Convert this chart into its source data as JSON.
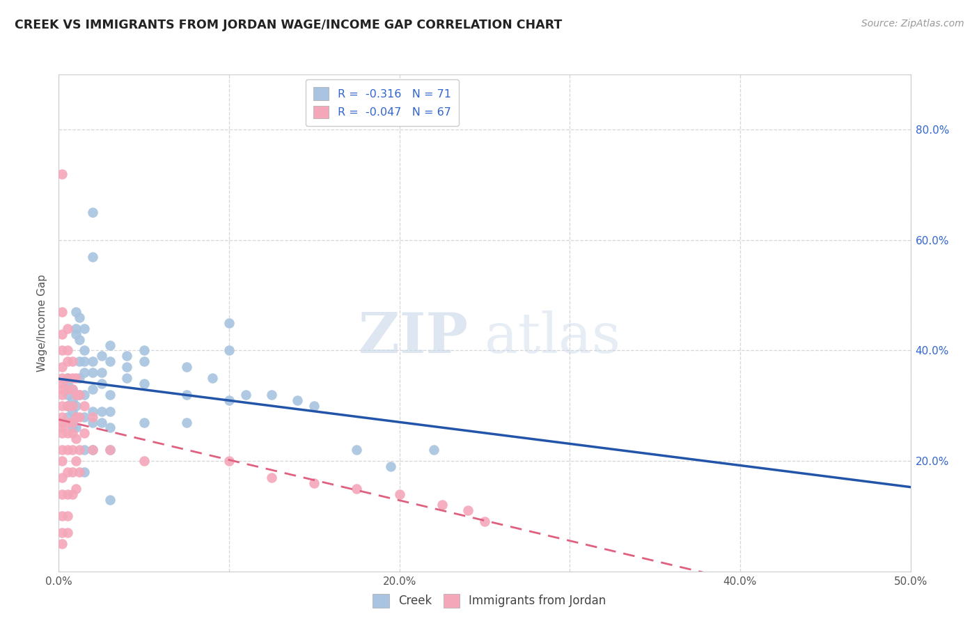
{
  "title": "CREEK VS IMMIGRANTS FROM JORDAN WAGE/INCOME GAP CORRELATION CHART",
  "source": "Source: ZipAtlas.com",
  "ylabel": "Wage/Income Gap",
  "xlim": [
    0.0,
    0.5
  ],
  "ylim": [
    -0.02,
    0.92
  ],
  "plot_ylim": [
    0.0,
    0.9
  ],
  "xtick_vals": [
    0.0,
    0.1,
    0.2,
    0.3,
    0.4,
    0.5
  ],
  "xtick_labels": [
    "0.0%",
    "",
    "20.0%",
    "",
    "40.0%",
    "50.0%"
  ],
  "ytick_vals": [
    0.2,
    0.4,
    0.6,
    0.8
  ],
  "ytick_labels": [
    "20.0%",
    "40.0%",
    "60.0%",
    "80.0%"
  ],
  "creek_color": "#a8c4e0",
  "jordan_color": "#f4a7b9",
  "creek_R": -0.316,
  "creek_N": 71,
  "jordan_R": -0.047,
  "jordan_N": 67,
  "legend_R_color": "#3366cc",
  "creek_line_color": "#2255aa",
  "jordan_line_color": "#e06080",
  "watermark_zip": "ZIP",
  "watermark_atlas": "atlas",
  "creek_points": [
    [
      0.005,
      0.34
    ],
    [
      0.005,
      0.32
    ],
    [
      0.005,
      0.3
    ],
    [
      0.005,
      0.28
    ],
    [
      0.005,
      0.35
    ],
    [
      0.008,
      0.33
    ],
    [
      0.008,
      0.29
    ],
    [
      0.008,
      0.27
    ],
    [
      0.008,
      0.31
    ],
    [
      0.008,
      0.26
    ],
    [
      0.01,
      0.47
    ],
    [
      0.01,
      0.44
    ],
    [
      0.01,
      0.43
    ],
    [
      0.01,
      0.32
    ],
    [
      0.01,
      0.3
    ],
    [
      0.01,
      0.28
    ],
    [
      0.01,
      0.26
    ],
    [
      0.012,
      0.46
    ],
    [
      0.012,
      0.42
    ],
    [
      0.012,
      0.38
    ],
    [
      0.012,
      0.35
    ],
    [
      0.012,
      0.32
    ],
    [
      0.015,
      0.44
    ],
    [
      0.015,
      0.4
    ],
    [
      0.015,
      0.38
    ],
    [
      0.015,
      0.36
    ],
    [
      0.015,
      0.32
    ],
    [
      0.015,
      0.28
    ],
    [
      0.015,
      0.22
    ],
    [
      0.015,
      0.18
    ],
    [
      0.02,
      0.65
    ],
    [
      0.02,
      0.57
    ],
    [
      0.02,
      0.38
    ],
    [
      0.02,
      0.36
    ],
    [
      0.02,
      0.33
    ],
    [
      0.02,
      0.29
    ],
    [
      0.02,
      0.27
    ],
    [
      0.02,
      0.22
    ],
    [
      0.025,
      0.39
    ],
    [
      0.025,
      0.36
    ],
    [
      0.025,
      0.34
    ],
    [
      0.025,
      0.29
    ],
    [
      0.025,
      0.27
    ],
    [
      0.03,
      0.41
    ],
    [
      0.03,
      0.38
    ],
    [
      0.03,
      0.32
    ],
    [
      0.03,
      0.29
    ],
    [
      0.03,
      0.26
    ],
    [
      0.03,
      0.22
    ],
    [
      0.03,
      0.13
    ],
    [
      0.04,
      0.39
    ],
    [
      0.04,
      0.37
    ],
    [
      0.04,
      0.35
    ],
    [
      0.05,
      0.4
    ],
    [
      0.05,
      0.38
    ],
    [
      0.05,
      0.34
    ],
    [
      0.05,
      0.27
    ],
    [
      0.075,
      0.37
    ],
    [
      0.075,
      0.32
    ],
    [
      0.075,
      0.27
    ],
    [
      0.09,
      0.35
    ],
    [
      0.1,
      0.45
    ],
    [
      0.1,
      0.4
    ],
    [
      0.1,
      0.31
    ],
    [
      0.11,
      0.32
    ],
    [
      0.125,
      0.32
    ],
    [
      0.14,
      0.31
    ],
    [
      0.15,
      0.3
    ],
    [
      0.175,
      0.22
    ],
    [
      0.195,
      0.19
    ],
    [
      0.22,
      0.22
    ]
  ],
  "jordan_points": [
    [
      0.002,
      0.72
    ],
    [
      0.002,
      0.47
    ],
    [
      0.002,
      0.43
    ],
    [
      0.002,
      0.4
    ],
    [
      0.002,
      0.37
    ],
    [
      0.002,
      0.35
    ],
    [
      0.002,
      0.34
    ],
    [
      0.002,
      0.33
    ],
    [
      0.002,
      0.32
    ],
    [
      0.002,
      0.3
    ],
    [
      0.002,
      0.28
    ],
    [
      0.002,
      0.27
    ],
    [
      0.002,
      0.26
    ],
    [
      0.002,
      0.25
    ],
    [
      0.002,
      0.22
    ],
    [
      0.002,
      0.2
    ],
    [
      0.002,
      0.17
    ],
    [
      0.002,
      0.14
    ],
    [
      0.002,
      0.1
    ],
    [
      0.002,
      0.07
    ],
    [
      0.002,
      0.05
    ],
    [
      0.005,
      0.44
    ],
    [
      0.005,
      0.4
    ],
    [
      0.005,
      0.38
    ],
    [
      0.005,
      0.35
    ],
    [
      0.005,
      0.33
    ],
    [
      0.005,
      0.3
    ],
    [
      0.005,
      0.27
    ],
    [
      0.005,
      0.25
    ],
    [
      0.005,
      0.22
    ],
    [
      0.005,
      0.18
    ],
    [
      0.005,
      0.14
    ],
    [
      0.005,
      0.1
    ],
    [
      0.005,
      0.07
    ],
    [
      0.008,
      0.38
    ],
    [
      0.008,
      0.35
    ],
    [
      0.008,
      0.33
    ],
    [
      0.008,
      0.3
    ],
    [
      0.008,
      0.27
    ],
    [
      0.008,
      0.25
    ],
    [
      0.008,
      0.22
    ],
    [
      0.008,
      0.18
    ],
    [
      0.008,
      0.14
    ],
    [
      0.01,
      0.35
    ],
    [
      0.01,
      0.32
    ],
    [
      0.01,
      0.28
    ],
    [
      0.01,
      0.24
    ],
    [
      0.01,
      0.2
    ],
    [
      0.01,
      0.15
    ],
    [
      0.012,
      0.32
    ],
    [
      0.012,
      0.28
    ],
    [
      0.012,
      0.22
    ],
    [
      0.012,
      0.18
    ],
    [
      0.015,
      0.3
    ],
    [
      0.015,
      0.25
    ],
    [
      0.02,
      0.28
    ],
    [
      0.02,
      0.22
    ],
    [
      0.03,
      0.22
    ],
    [
      0.05,
      0.2
    ],
    [
      0.1,
      0.2
    ],
    [
      0.125,
      0.17
    ],
    [
      0.15,
      0.16
    ],
    [
      0.175,
      0.15
    ],
    [
      0.2,
      0.14
    ],
    [
      0.225,
      0.12
    ],
    [
      0.24,
      0.11
    ],
    [
      0.25,
      0.09
    ]
  ]
}
